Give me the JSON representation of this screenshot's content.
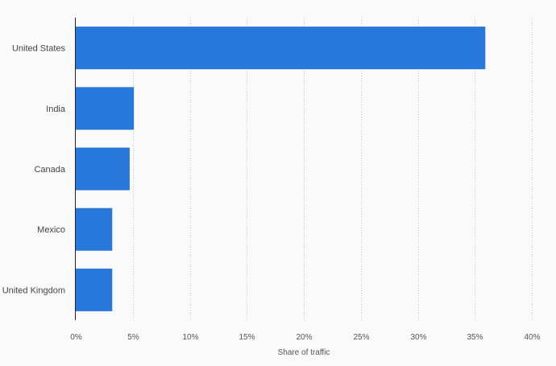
{
  "chart_data": {
    "type": "bar",
    "orientation": "horizontal",
    "categories": [
      "United States",
      "India",
      "Canada",
      "Mexico",
      "United Kingdom"
    ],
    "values": [
      35.92,
      5.1,
      4.73,
      3.2,
      3.2
    ],
    "unit": "%",
    "title": "",
    "xlabel": "Share of traffic",
    "ylabel": "",
    "xlim": [
      0,
      40
    ],
    "x_ticks": [
      0,
      5,
      10,
      15,
      20,
      25,
      30,
      35,
      40
    ],
    "x_tick_labels": [
      "0%",
      "5%",
      "10%",
      "15%",
      "20%",
      "25%",
      "30%",
      "35%",
      "40%"
    ],
    "grid": "vertical dotted",
    "bar_color": "#2878dc"
  }
}
